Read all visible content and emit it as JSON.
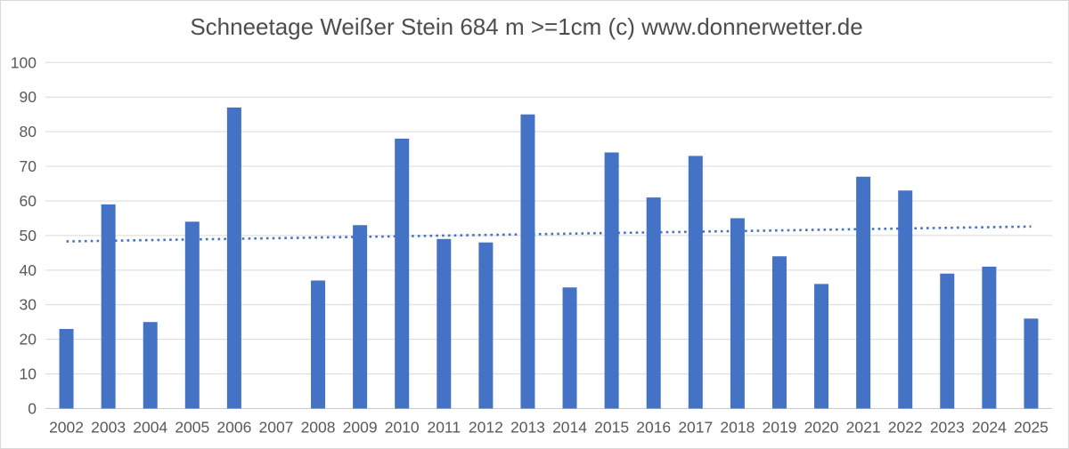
{
  "chart_data": {
    "type": "bar",
    "title": "Schneetage Weißer Stein 684 m >=1cm (c) www.donnerwetter.de",
    "categories": [
      "2002",
      "2003",
      "2004",
      "2005",
      "2006",
      "2007",
      "2008",
      "2009",
      "2010",
      "2011",
      "2012",
      "2013",
      "2014",
      "2015",
      "2016",
      "2017",
      "2018",
      "2019",
      "2020",
      "2021",
      "2022",
      "2023",
      "2024",
      "2025"
    ],
    "values": [
      23,
      59,
      25,
      54,
      87,
      0,
      37,
      53,
      78,
      49,
      48,
      85,
      35,
      74,
      61,
      73,
      55,
      44,
      36,
      67,
      63,
      39,
      41,
      26
    ],
    "xlabel": "",
    "ylabel": "",
    "ylim": [
      0,
      100
    ],
    "yticks": [
      0,
      10,
      20,
      30,
      40,
      50,
      60,
      70,
      80,
      90,
      100
    ],
    "grid": true,
    "legend": false,
    "trendline": {
      "style": "dotted",
      "start_value": 48.3,
      "end_value": 52.6
    },
    "colors": {
      "bar": "#4472c4",
      "trendline": "#4472c4",
      "gridline": "#d9d9d9",
      "axis_line": "#c9c9c9",
      "tick_text": "#595959",
      "title_text": "#4d4d4d",
      "background": "#ffffff",
      "border": "#d9d9d9"
    }
  }
}
